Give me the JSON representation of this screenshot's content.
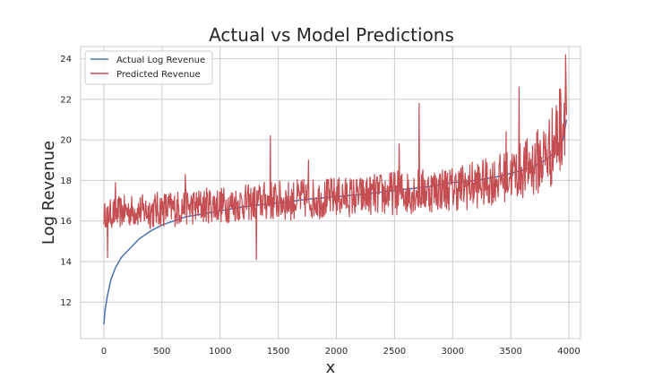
{
  "chart_data": {
    "type": "line",
    "title": "Actual vs Model Predictions",
    "xlabel": "x",
    "ylabel": "Log Revenue",
    "xlim": [
      -200,
      4100
    ],
    "ylim": [
      10.2,
      24.6
    ],
    "xticks": [
      0,
      500,
      1000,
      1500,
      2000,
      2500,
      3000,
      3500,
      4000
    ],
    "yticks": [
      12,
      14,
      16,
      18,
      20,
      22,
      24
    ],
    "grid": true,
    "legend_position": "top-left",
    "series": [
      {
        "name": "Actual Log Revenue",
        "color": "#4c72b0",
        "x": [
          0,
          10,
          30,
          60,
          100,
          150,
          200,
          250,
          300,
          400,
          500,
          600,
          700,
          800,
          1000,
          1200,
          1500,
          1800,
          2000,
          2200,
          2500,
          2800,
          3000,
          3200,
          3400,
          3600,
          3700,
          3800,
          3900,
          3950,
          3980
        ],
        "values": [
          10.9,
          11.6,
          12.3,
          13.1,
          13.7,
          14.2,
          14.5,
          14.8,
          15.1,
          15.5,
          15.8,
          16.0,
          16.2,
          16.3,
          16.5,
          16.7,
          16.9,
          17.1,
          17.2,
          17.3,
          17.5,
          17.7,
          17.9,
          18.0,
          18.2,
          18.5,
          18.7,
          19.0,
          19.5,
          20.0,
          21.0
        ]
      },
      {
        "name": "Predicted Revenue",
        "color": "#c44e52",
        "x": [
          0,
          100,
          200,
          300,
          400,
          500,
          600,
          700,
          800,
          900,
          1000,
          1100,
          1200,
          1300,
          1400,
          1500,
          1600,
          1700,
          1800,
          1900,
          2000,
          2100,
          2200,
          2300,
          2400,
          2500,
          2600,
          2700,
          2800,
          2900,
          3000,
          3100,
          3200,
          3300,
          3400,
          3500,
          3600,
          3700,
          3800,
          3850,
          3900,
          3950,
          3980
        ],
        "center": [
          16.3,
          16.4,
          16.5,
          16.5,
          16.5,
          16.6,
          16.6,
          16.7,
          16.7,
          16.8,
          16.8,
          16.8,
          16.9,
          16.9,
          17.0,
          17.0,
          17.0,
          17.1,
          17.1,
          17.1,
          17.2,
          17.2,
          17.2,
          17.3,
          17.3,
          17.4,
          17.4,
          17.5,
          17.5,
          17.6,
          17.6,
          17.7,
          17.8,
          17.9,
          18.1,
          18.3,
          18.5,
          18.8,
          19.2,
          19.6,
          20.2,
          21.0,
          21.8
        ],
        "spread": [
          0.6,
          0.8,
          0.8,
          0.8,
          0.9,
          0.9,
          0.9,
          0.9,
          0.9,
          0.9,
          0.9,
          0.9,
          0.9,
          0.9,
          1.0,
          1.0,
          1.0,
          1.0,
          1.0,
          1.0,
          1.0,
          1.0,
          1.0,
          1.0,
          1.1,
          1.1,
          1.1,
          1.1,
          1.1,
          1.1,
          1.1,
          1.2,
          1.2,
          1.2,
          1.2,
          1.3,
          1.4,
          1.6,
          1.8,
          2.0,
          2.2,
          2.4,
          2.4
        ],
        "spikes": [
          {
            "x": 30,
            "y": 14.2
          },
          {
            "x": 100,
            "y": 17.9
          },
          {
            "x": 700,
            "y": 18.3
          },
          {
            "x": 1310,
            "y": 14.1
          },
          {
            "x": 1430,
            "y": 20.2
          },
          {
            "x": 1760,
            "y": 19.0
          },
          {
            "x": 2540,
            "y": 19.8
          },
          {
            "x": 2710,
            "y": 21.8
          },
          {
            "x": 3460,
            "y": 20.4
          },
          {
            "x": 3570,
            "y": 22.6
          },
          {
            "x": 3970,
            "y": 24.2
          }
        ]
      }
    ]
  }
}
